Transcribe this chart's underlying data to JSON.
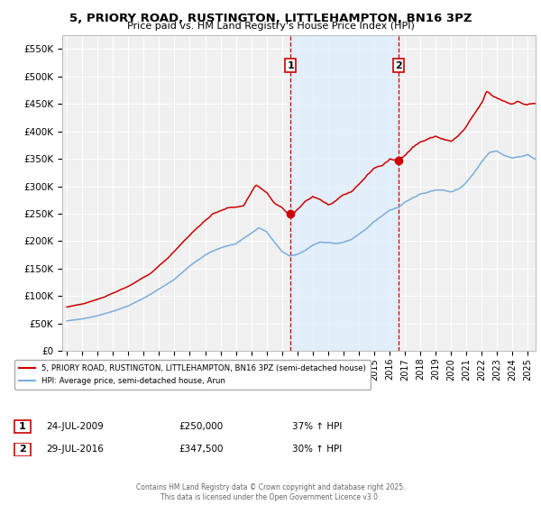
{
  "title": "5, PRIORY ROAD, RUSTINGTON, LITTLEHAMPTON, BN16 3PZ",
  "subtitle": "Price paid vs. HM Land Registry's House Price Index (HPI)",
  "ylabel_ticks": [
    "£0",
    "£50K",
    "£100K",
    "£150K",
    "£200K",
    "£250K",
    "£300K",
    "£350K",
    "£400K",
    "£450K",
    "£500K",
    "£550K"
  ],
  "ytick_values": [
    0,
    50000,
    100000,
    150000,
    200000,
    250000,
    300000,
    350000,
    400000,
    450000,
    500000,
    550000
  ],
  "ylim": [
    0,
    575000
  ],
  "xlim_start": 1994.7,
  "xlim_end": 2025.5,
  "xticks": [
    1995,
    1996,
    1997,
    1998,
    1999,
    2000,
    2001,
    2002,
    2003,
    2004,
    2005,
    2006,
    2007,
    2008,
    2009,
    2010,
    2011,
    2012,
    2013,
    2014,
    2015,
    2016,
    2017,
    2018,
    2019,
    2020,
    2021,
    2022,
    2023,
    2024,
    2025
  ],
  "marker1_x": 2009.56,
  "marker1_y": 250000,
  "marker1_label": "1",
  "marker1_date": "24-JUL-2009",
  "marker1_price": "£250,000",
  "marker1_hpi": "37% ↑ HPI",
  "marker2_x": 2016.57,
  "marker2_y": 347500,
  "marker2_label": "2",
  "marker2_date": "29-JUL-2016",
  "marker2_price": "£347,500",
  "marker2_hpi": "30% ↑ HPI",
  "vline_color": "#cc0000",
  "shade_color": "#ddeeff",
  "red_line_color": "#cc0000",
  "blue_line_color": "#7aaddb",
  "legend_label_red": "5, PRIORY ROAD, RUSTINGTON, LITTLEHAMPTON, BN16 3PZ (semi-detached house)",
  "legend_label_blue": "HPI: Average price, semi-detached house, Arun",
  "footer": "Contains HM Land Registry data © Crown copyright and database right 2025.\nThis data is licensed under the Open Government Licence v3.0.",
  "background_color": "#ffffff",
  "plot_bg_color": "#f0f0f0"
}
